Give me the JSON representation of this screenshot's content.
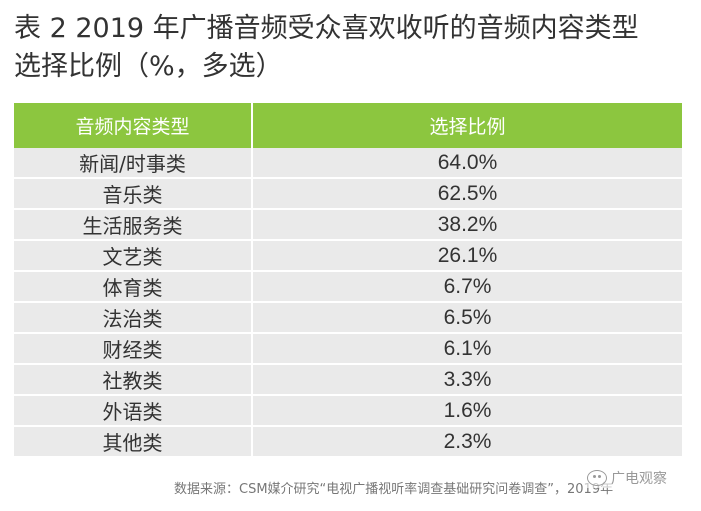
{
  "title": {
    "line1": "表 2  2019 年广播音频受众喜欢收听的音频内容类型",
    "line2": "选择比例（%，多选）"
  },
  "table": {
    "headers": [
      "音频内容类型",
      "选择比例"
    ],
    "rows": [
      {
        "type": "新闻/时事类",
        "value": "64.0%"
      },
      {
        "type": "音乐类",
        "value": "62.5%"
      },
      {
        "type": "生活服务类",
        "value": "38.2%"
      },
      {
        "type": "文艺类",
        "value": "26.1%"
      },
      {
        "type": "体育类",
        "value": "6.7%"
      },
      {
        "type": "法治类",
        "value": "6.5%"
      },
      {
        "type": "财经类",
        "value": "6.1%"
      },
      {
        "type": "社教类",
        "value": "3.3%"
      },
      {
        "type": "外语类",
        "value": "1.6%"
      },
      {
        "type": "其他类",
        "value": "2.3%"
      }
    ]
  },
  "source": "数据来源：CSM媒介研究“电视广播视听率调查基础研究问卷调查”，2019年",
  "watermark": {
    "text": "广电观察",
    "icon": "wechat-icon"
  },
  "colors": {
    "header_bg": "#8cc63f",
    "row_bg": "#eaeaea"
  }
}
